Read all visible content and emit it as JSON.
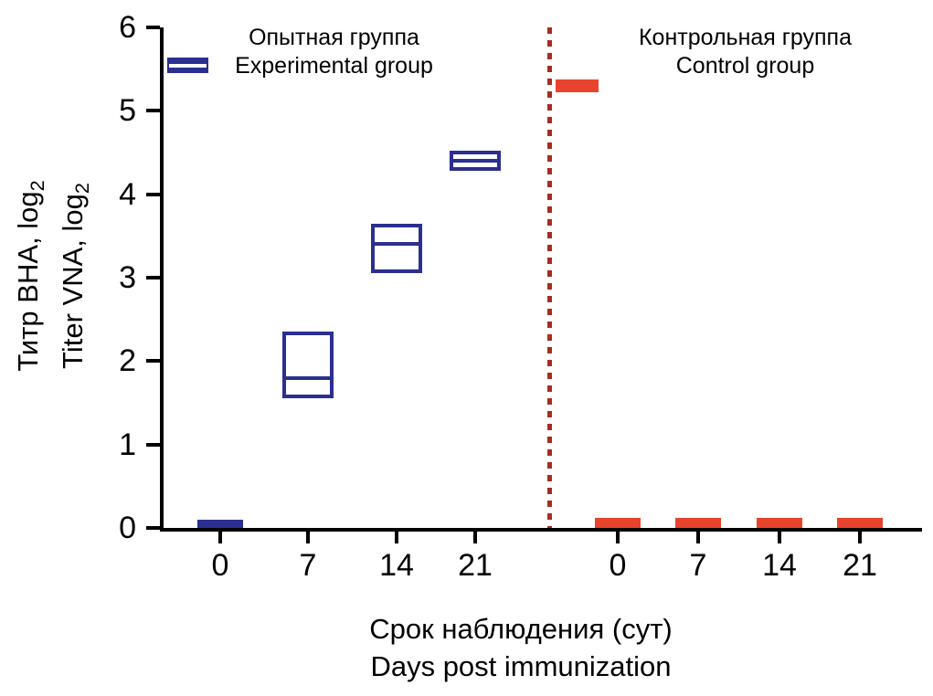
{
  "chart_data": {
    "type": "box",
    "title": "",
    "ylim": [
      0,
      6
    ],
    "yticks": [
      0,
      1,
      2,
      3,
      4,
      5,
      6
    ],
    "ylabel_lines": [
      {
        "text": "Титр ВНА, log",
        "sub": "2"
      },
      {
        "text": "Titer VNA, log",
        "sub": "2"
      }
    ],
    "xlabel_lines": [
      "Срок наблюдения (сут)",
      "Days post immunization"
    ],
    "x_axis_categories": [
      "0",
      "7",
      "14",
      "21",
      "0",
      "7",
      "14",
      "21"
    ],
    "legend": [
      {
        "lines": [
          "Опытная группа",
          "Experimental group"
        ],
        "color": "#2b2f90",
        "position": "top-left"
      },
      {
        "lines": [
          "Контрольная группа",
          "Control group"
        ],
        "color": "#e8432d",
        "position": "top-right"
      }
    ],
    "divider_color": "#a62d1f",
    "axis_color": "#000000",
    "grid": "off",
    "groups": [
      {
        "name": "Experimental group",
        "color": "#2b2f90",
        "categories": [
          "0",
          "7",
          "14",
          "21"
        ],
        "boxes": [
          {
            "style": "bar",
            "low": 0,
            "high": 0.1,
            "median": null
          },
          {
            "style": "box",
            "low": 1.55,
            "high": 2.35,
            "median": 1.8
          },
          {
            "style": "box",
            "low": 3.05,
            "high": 3.65,
            "median": 3.4
          },
          {
            "style": "box",
            "low": 4.28,
            "high": 4.52,
            "median": 4.4
          }
        ]
      },
      {
        "name": "Control group",
        "color": "#e8432d",
        "categories": [
          "0",
          "7",
          "14",
          "21"
        ],
        "boxes": [
          {
            "style": "bar",
            "low": 0,
            "high": 0.12,
            "median": null
          },
          {
            "style": "bar",
            "low": 0,
            "high": 0.12,
            "median": null
          },
          {
            "style": "bar",
            "low": 0,
            "high": 0.12,
            "median": null
          },
          {
            "style": "bar",
            "low": 0,
            "high": 0.12,
            "median": null
          }
        ]
      }
    ]
  }
}
